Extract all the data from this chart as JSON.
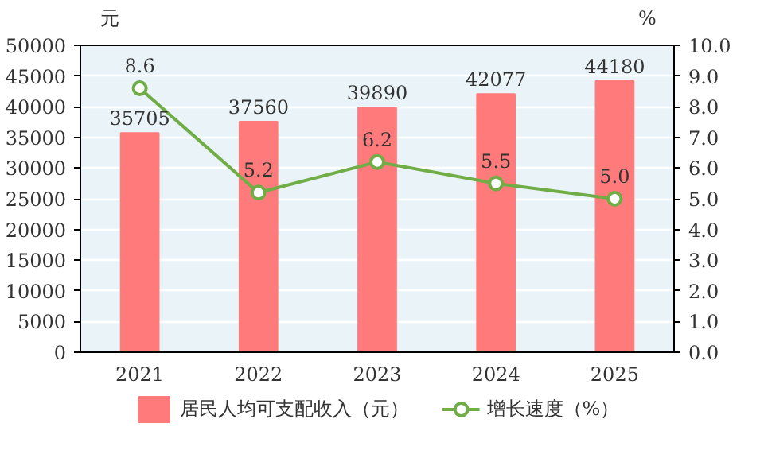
{
  "chart_data": {
    "type": "bar",
    "ylabel": "元",
    "y2label": "%",
    "categories": [
      "2021",
      "2022",
      "2023",
      "2024",
      "2025"
    ],
    "series": [
      {
        "name": "居民人均可支配收入（元）",
        "color": "#ff7b7b",
        "values": [
          35705,
          37560,
          39890,
          42077,
          44180
        ]
      },
      {
        "name": "增长速度（%）",
        "type": "line",
        "axis": "y2",
        "color": "#70ad47",
        "values": [
          8.6,
          5.2,
          6.2,
          5.5,
          5.0
        ],
        "value_labels": [
          "8.6",
          "5.2",
          "6.2",
          "5.5",
          "5.0"
        ]
      }
    ],
    "data_labels": true,
    "marker": "circle",
    "line_style": "solid",
    "grid": "y",
    "legend": "bottom",
    "ylim": [
      0,
      50000
    ],
    "yticks": [
      0,
      5000,
      10000,
      15000,
      20000,
      25000,
      30000,
      35000,
      40000,
      45000,
      50000
    ],
    "y2lim": [
      0,
      10
    ],
    "y2ticks": [
      {
        "value": 0,
        "label": "0.0"
      },
      {
        "value": 1,
        "label": "1.0"
      },
      {
        "value": 2,
        "label": "2.0"
      },
      {
        "value": 3,
        "label": "3.0"
      },
      {
        "value": 4,
        "label": "4.0"
      },
      {
        "value": 5,
        "label": "5.0"
      },
      {
        "value": 6,
        "label": "6.0"
      },
      {
        "value": 7,
        "label": "7.0"
      },
      {
        "value": 8,
        "label": "8.0"
      },
      {
        "value": 9,
        "label": "9.0"
      },
      {
        "value": 10,
        "label": "10.0"
      }
    ]
  }
}
